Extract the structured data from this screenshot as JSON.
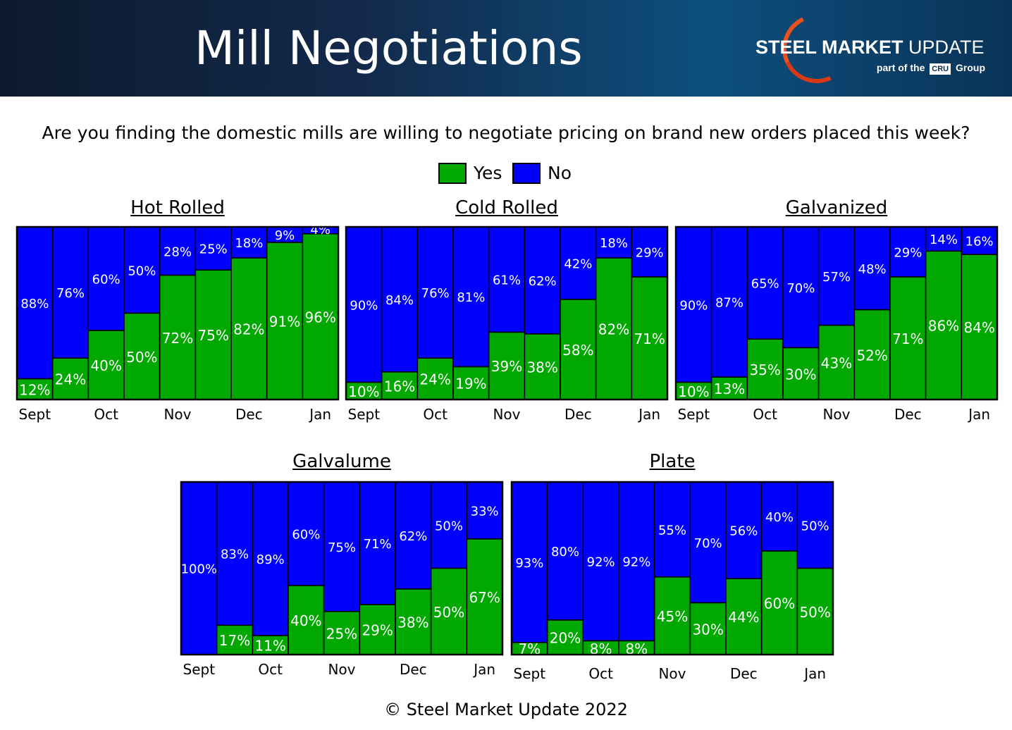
{
  "header": {
    "title": "Mill Negotiations",
    "logo_bold": "STEEL MARKET",
    "logo_light": "UPDATE",
    "logo_sub_pre": "part of the",
    "logo_cru": "CRU",
    "logo_sub_post": "Group"
  },
  "question": "Are you finding the domestic mills are willing to negotiate pricing on brand new orders placed this week?",
  "legend": [
    {
      "label": "Yes",
      "color": "#00a800"
    },
    {
      "label": "No",
      "color": "#0000ff"
    }
  ],
  "footer": "© Steel Market Update 2022",
  "chart_data": [
    {
      "type": "bar",
      "stacked": "percent",
      "title": "Hot Rolled",
      "month_labels": [
        "Sept",
        "Oct",
        "Nov",
        "Dec",
        "Jan"
      ],
      "series": [
        {
          "name": "Yes",
          "values": [
            12,
            24,
            40,
            50,
            72,
            75,
            82,
            91,
            96
          ]
        },
        {
          "name": "No",
          "values": [
            88,
            76,
            60,
            50,
            28,
            25,
            18,
            9,
            4
          ]
        }
      ]
    },
    {
      "type": "bar",
      "stacked": "percent",
      "title": "Cold Rolled",
      "month_labels": [
        "Sept",
        "Oct",
        "Nov",
        "Dec",
        "Jan"
      ],
      "series": [
        {
          "name": "Yes",
          "values": [
            10,
            16,
            24,
            19,
            39,
            38,
            58,
            82,
            71
          ]
        },
        {
          "name": "No",
          "values": [
            90,
            84,
            76,
            81,
            61,
            62,
            42,
            18,
            29
          ]
        }
      ]
    },
    {
      "type": "bar",
      "stacked": "percent",
      "title": "Galvanized",
      "month_labels": [
        "Sept",
        "Oct",
        "Nov",
        "Dec",
        "Jan"
      ],
      "series": [
        {
          "name": "Yes",
          "values": [
            10,
            13,
            35,
            30,
            43,
            52,
            71,
            86,
            84
          ]
        },
        {
          "name": "No",
          "values": [
            90,
            87,
            65,
            70,
            57,
            48,
            29,
            14,
            16
          ]
        }
      ]
    },
    {
      "type": "bar",
      "stacked": "percent",
      "title": "Galvalume",
      "month_labels": [
        "Sept",
        "Oct",
        "Nov",
        "Dec",
        "Jan"
      ],
      "series": [
        {
          "name": "Yes",
          "values": [
            0,
            17,
            11,
            40,
            25,
            29,
            38,
            50,
            67
          ]
        },
        {
          "name": "No",
          "values": [
            100,
            83,
            89,
            60,
            75,
            71,
            62,
            50,
            33
          ]
        }
      ]
    },
    {
      "type": "bar",
      "stacked": "percent",
      "title": "Plate",
      "month_labels": [
        "Sept",
        "Oct",
        "Nov",
        "Dec",
        "Jan"
      ],
      "series": [
        {
          "name": "Yes",
          "values": [
            7,
            20,
            8,
            8,
            45,
            30,
            44,
            60,
            50
          ]
        },
        {
          "name": "No",
          "values": [
            93,
            80,
            92,
            92,
            55,
            70,
            56,
            40,
            50
          ]
        }
      ]
    }
  ]
}
